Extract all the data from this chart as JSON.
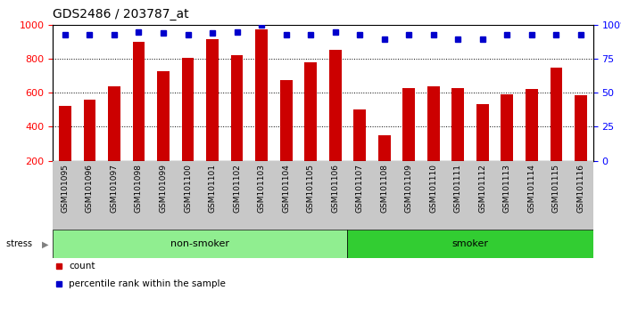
{
  "title": "GDS2486 / 203787_at",
  "samples": [
    "GSM101095",
    "GSM101096",
    "GSM101097",
    "GSM101098",
    "GSM101099",
    "GSM101100",
    "GSM101101",
    "GSM101102",
    "GSM101103",
    "GSM101104",
    "GSM101105",
    "GSM101106",
    "GSM101107",
    "GSM101108",
    "GSM101109",
    "GSM101110",
    "GSM101111",
    "GSM101112",
    "GSM101113",
    "GSM101114",
    "GSM101115",
    "GSM101116"
  ],
  "counts": [
    525,
    560,
    640,
    900,
    730,
    805,
    915,
    825,
    975,
    675,
    780,
    855,
    505,
    350,
    630,
    640,
    630,
    535,
    590,
    625,
    750,
    585
  ],
  "percentiles": [
    93,
    93,
    93,
    95,
    94,
    93,
    94,
    95,
    100,
    93,
    93,
    95,
    93,
    90,
    93,
    93,
    90,
    90,
    93,
    93,
    93,
    93
  ],
  "non_smoker_count": 12,
  "smoker_count": 10,
  "bar_color": "#cc0000",
  "dot_color": "#0000cc",
  "ylim_left": [
    200,
    1000
  ],
  "ylim_right": [
    0,
    100
  ],
  "yticks_left": [
    200,
    400,
    600,
    800,
    1000
  ],
  "yticks_right": [
    0,
    25,
    50,
    75,
    100
  ],
  "non_smoker_bg": "#90EE90",
  "smoker_bg": "#32CD32",
  "label_bg": "#C8C8C8",
  "stress_label": "stress",
  "legend_count": "count",
  "legend_pct": "percentile rank within the sample",
  "grid_lines": [
    400,
    600,
    800
  ],
  "bar_width": 0.5,
  "dot_size": 4,
  "title_fontsize": 10,
  "axis_fontsize": 8,
  "tick_fontsize": 6.5,
  "band_fontsize": 8,
  "legend_fontsize": 7.5
}
